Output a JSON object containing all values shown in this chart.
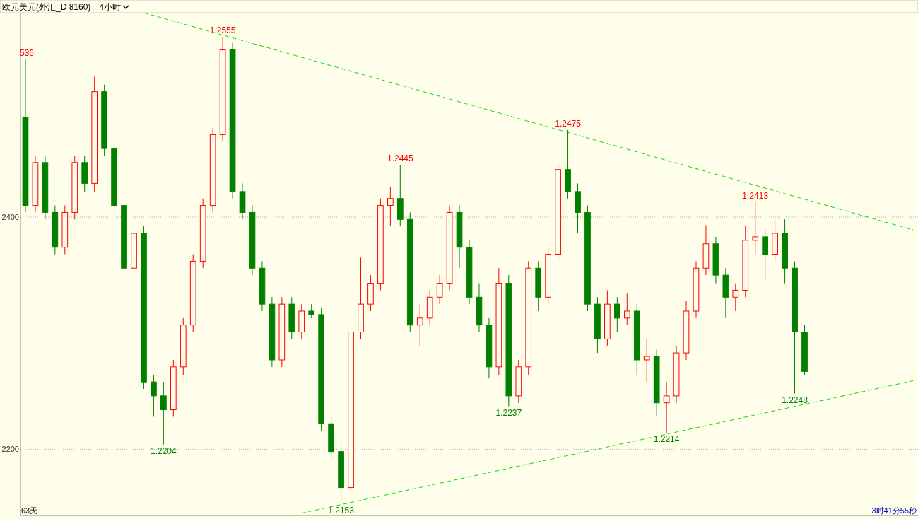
{
  "chart_data": {
    "type": "candlestick",
    "title": "欧元美元(外汇_D 8160)",
    "subtitle": "4小时",
    "categories": [
      null,
      null,
      null,
      null,
      null,
      null,
      null,
      null,
      null,
      null,
      null,
      null,
      null,
      null,
      null,
      null,
      null,
      null,
      null,
      null,
      null,
      null,
      null,
      null,
      null,
      null,
      null,
      null,
      null,
      null,
      null,
      null,
      null,
      null,
      null,
      null,
      null,
      null,
      null,
      null,
      null,
      null,
      null,
      null,
      null,
      null,
      null,
      null,
      null,
      null,
      null,
      null,
      null,
      null,
      null,
      null,
      null,
      null,
      null,
      null,
      null,
      null,
      null,
      null,
      null,
      null,
      null,
      null,
      null,
      null,
      null,
      null,
      null,
      null,
      null,
      null,
      null,
      null,
      null,
      null,
      null,
      null,
      null,
      null,
      null,
      null,
      null,
      null,
      null,
      null,
      null
    ],
    "ohlc": [
      [
        2486,
        2536,
        2404,
        2410
      ],
      [
        2410,
        2453,
        2404,
        2447
      ],
      [
        2447,
        2453,
        2398,
        2404
      ],
      [
        2404,
        2410,
        2368,
        2374
      ],
      [
        2374,
        2410,
        2368,
        2404
      ],
      [
        2404,
        2453,
        2398,
        2447
      ],
      [
        2447,
        2453,
        2422,
        2429
      ],
      [
        2429,
        2521,
        2422,
        2508
      ],
      [
        2508,
        2514,
        2453,
        2459
      ],
      [
        2459,
        2465,
        2404,
        2410
      ],
      [
        2410,
        2416,
        2350,
        2356
      ],
      [
        2356,
        2392,
        2350,
        2386
      ],
      [
        2386,
        2392,
        2252,
        2258
      ],
      [
        2258,
        2264,
        2228,
        2246
      ],
      [
        2246,
        2258,
        2204,
        2234
      ],
      [
        2234,
        2277,
        2228,
        2271
      ],
      [
        2271,
        2313,
        2264,
        2307
      ],
      [
        2307,
        2368,
        2301,
        2362
      ],
      [
        2362,
        2416,
        2356,
        2410
      ],
      [
        2410,
        2477,
        2404,
        2471
      ],
      [
        2471,
        2555,
        2465,
        2544
      ],
      [
        2544,
        2550,
        2416,
        2422
      ],
      [
        2422,
        2429,
        2398,
        2404
      ],
      [
        2404,
        2410,
        2350,
        2356
      ],
      [
        2356,
        2362,
        2319,
        2325
      ],
      [
        2325,
        2331,
        2271,
        2277
      ],
      [
        2277,
        2331,
        2271,
        2325
      ],
      [
        2325,
        2331,
        2295,
        2301
      ],
      [
        2301,
        2325,
        2295,
        2319
      ],
      [
        2319,
        2325,
        2313,
        2316
      ],
      [
        2316,
        2322,
        2216,
        2222
      ],
      [
        2222,
        2228,
        2191,
        2198
      ],
      [
        2198,
        2206,
        2153,
        2167
      ],
      [
        2167,
        2307,
        2161,
        2301
      ],
      [
        2301,
        2365,
        2295,
        2325
      ],
      [
        2325,
        2350,
        2319,
        2343
      ],
      [
        2343,
        2416,
        2337,
        2410
      ],
      [
        2410,
        2426,
        2392,
        2416
      ],
      [
        2416,
        2445,
        2392,
        2398
      ],
      [
        2398,
        2404,
        2301,
        2307
      ],
      [
        2307,
        2325,
        2289,
        2313
      ],
      [
        2313,
        2337,
        2307,
        2331
      ],
      [
        2331,
        2350,
        2325,
        2343
      ],
      [
        2343,
        2410,
        2337,
        2404
      ],
      [
        2404,
        2410,
        2356,
        2374
      ],
      [
        2374,
        2380,
        2325,
        2331
      ],
      [
        2331,
        2343,
        2301,
        2307
      ],
      [
        2307,
        2313,
        2261,
        2271
      ],
      [
        2271,
        2356,
        2264,
        2343
      ],
      [
        2343,
        2350,
        2237,
        2246
      ],
      [
        2246,
        2277,
        2240,
        2271
      ],
      [
        2271,
        2362,
        2264,
        2356
      ],
      [
        2356,
        2362,
        2319,
        2331
      ],
      [
        2331,
        2374,
        2325,
        2368
      ],
      [
        2368,
        2447,
        2362,
        2441
      ],
      [
        2441,
        2475,
        2416,
        2422
      ],
      [
        2422,
        2429,
        2386,
        2404
      ],
      [
        2404,
        2410,
        2319,
        2325
      ],
      [
        2325,
        2331,
        2283,
        2295
      ],
      [
        2295,
        2337,
        2289,
        2325
      ],
      [
        2325,
        2331,
        2301,
        2313
      ],
      [
        2313,
        2334,
        2307,
        2319
      ],
      [
        2319,
        2325,
        2264,
        2277
      ],
      [
        2277,
        2295,
        2258,
        2280
      ],
      [
        2280,
        2286,
        2228,
        2240
      ],
      [
        2240,
        2258,
        2214,
        2246
      ],
      [
        2246,
        2289,
        2240,
        2283
      ],
      [
        2283,
        2328,
        2277,
        2319
      ],
      [
        2319,
        2362,
        2313,
        2356
      ],
      [
        2356,
        2393,
        2350,
        2377
      ],
      [
        2377,
        2383,
        2343,
        2350
      ],
      [
        2350,
        2356,
        2313,
        2331
      ],
      [
        2331,
        2343,
        2319,
        2337
      ],
      [
        2337,
        2392,
        2331,
        2380
      ],
      [
        2380,
        2413,
        2368,
        2383
      ],
      [
        2383,
        2389,
        2346,
        2368
      ],
      [
        2368,
        2398,
        2362,
        2386
      ],
      [
        2386,
        2398,
        2343,
        2356
      ],
      [
        2356,
        2362,
        2248,
        2301
      ],
      [
        2301,
        2307,
        2264,
        2267
      ],
      null,
      null,
      null,
      null,
      null,
      null,
      null,
      null,
      null,
      null,
      null
    ],
    "series": [
      {
        "type": "line",
        "color": "#00e000",
        "line_style": "dashed",
        "values": [
          null,
          null,
          null,
          null,
          null,
          null,
          null,
          null,
          null,
          null,
          null,
          null,
          2576,
          null,
          null,
          null,
          null,
          null,
          null,
          null,
          null,
          null,
          null,
          null,
          null,
          null,
          null,
          null,
          null,
          null,
          null,
          null,
          null,
          null,
          null,
          null,
          null,
          null,
          null,
          null,
          null,
          null,
          null,
          null,
          null,
          null,
          null,
          null,
          null,
          null,
          null,
          null,
          null,
          null,
          null,
          null,
          null,
          null,
          null,
          null,
          null,
          null,
          null,
          null,
          null,
          null,
          null,
          null,
          null,
          null,
          null,
          null,
          null,
          null,
          null,
          null,
          null,
          null,
          null,
          null,
          null,
          null,
          null,
          null,
          null,
          null,
          null,
          null,
          null,
          null,
          2389
        ]
      },
      {
        "type": "line",
        "color": "#00e000",
        "line_style": "dashed",
        "values": [
          null,
          null,
          null,
          null,
          null,
          null,
          null,
          null,
          null,
          null,
          null,
          null,
          null,
          null,
          null,
          null,
          null,
          null,
          null,
          null,
          null,
          null,
          null,
          null,
          null,
          null,
          null,
          null,
          2145,
          null,
          null,
          null,
          null,
          null,
          null,
          null,
          null,
          null,
          null,
          null,
          null,
          null,
          null,
          null,
          null,
          null,
          null,
          null,
          null,
          null,
          null,
          null,
          null,
          null,
          null,
          null,
          null,
          null,
          null,
          null,
          null,
          null,
          null,
          null,
          null,
          null,
          null,
          null,
          null,
          null,
          null,
          null,
          null,
          null,
          null,
          null,
          null,
          null,
          null,
          null,
          null,
          null,
          null,
          null,
          null,
          null,
          null,
          null,
          null,
          null,
          2259
        ]
      }
    ],
    "ylim": [
      2143,
      2576
    ],
    "yticks": [
      2400,
      2200
    ],
    "tick_labels": "y",
    "grid": "y",
    "annotations": [
      {
        "text": "536",
        "y": 2536
      },
      {
        "text": "1.2555",
        "y": 2555
      },
      {
        "text": "1.2445",
        "y": 2445
      },
      {
        "text": "1.2475",
        "y": 2475
      },
      {
        "text": "1.2413",
        "y": 2413
      },
      {
        "text": "1.2204",
        "y": 2204
      },
      {
        "text": "1.2153",
        "y": 2153
      },
      {
        "text": "1.2237",
        "y": 2237
      },
      {
        "text": "1.2214",
        "y": 2214
      },
      {
        "text": "1.2248",
        "y": 2248
      },
      "63天",
      "3时41分55秒"
    ]
  }
}
